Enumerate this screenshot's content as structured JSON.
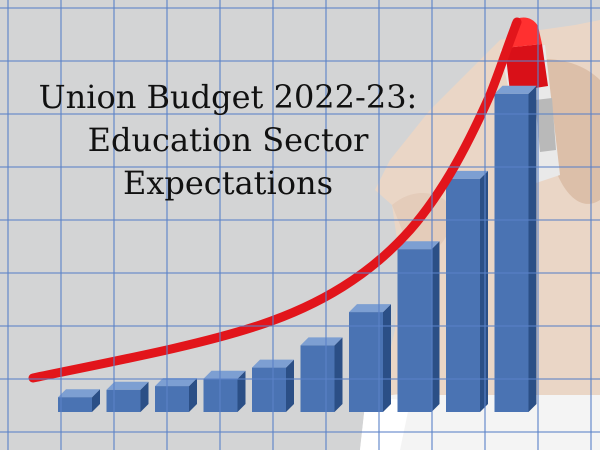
{
  "headline": {
    "line1": "Union Budget 2022-23:",
    "line2": "Education Sector",
    "line3": "Expectations"
  },
  "bar_levels": [
    0.04,
    0.06,
    0.07,
    0.09,
    0.12,
    0.18,
    0.27,
    0.44,
    0.63,
    0.86
  ],
  "colors": {
    "background": "#d3d4d5",
    "grid": "#5b82c8",
    "bar_front": "#4a73b3",
    "bar_side": "#2b4f86",
    "bar_top": "#7d9fd2",
    "trend_line": "#e2151b",
    "marker_cap": "#d91018"
  },
  "icons": [
    "hand-holding-marker-image",
    "red-marker-icon",
    "trend-arrow-line"
  ]
}
